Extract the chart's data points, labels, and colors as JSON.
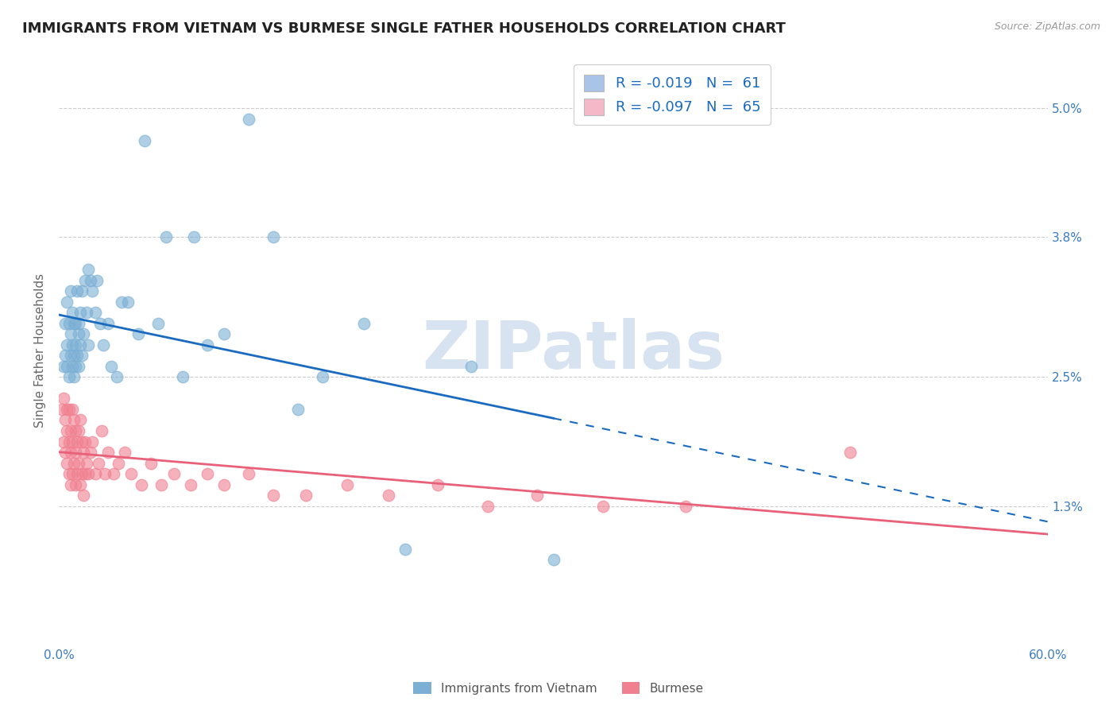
{
  "title": "IMMIGRANTS FROM VIETNAM VS BURMESE SINGLE FATHER HOUSEHOLDS CORRELATION CHART",
  "source": "Source: ZipAtlas.com",
  "ylabel": "Single Father Households",
  "xlim": [
    0.0,
    0.6
  ],
  "ylim": [
    0.0,
    0.055
  ],
  "x_tick_positions": [
    0.0,
    0.1,
    0.2,
    0.3,
    0.4,
    0.5,
    0.6
  ],
  "x_tick_labels": [
    "0.0%",
    "",
    "",
    "",
    "",
    "",
    "60.0%"
  ],
  "y_tick_positions": [
    0.013,
    0.025,
    0.038,
    0.05
  ],
  "y_tick_labels": [
    "1.3%",
    "2.5%",
    "3.8%",
    "5.0%"
  ],
  "legend_label_vietnam": "R = -0.019   N =  61",
  "legend_label_burmese": "R = -0.097   N =  65",
  "legend_patch_vietnam": "#aac4e8",
  "legend_patch_burmese": "#f5b8c8",
  "vietnam_color": "#7bafd4",
  "burmese_color": "#f08090",
  "vietnam_line_color": "#1a6bbf",
  "burmese_line_color": "#e8607a",
  "vietnam_line_solid_end": 0.3,
  "vietnam_scatter_x": [
    0.003,
    0.004,
    0.004,
    0.005,
    0.005,
    0.005,
    0.006,
    0.006,
    0.007,
    0.007,
    0.007,
    0.008,
    0.008,
    0.008,
    0.009,
    0.009,
    0.009,
    0.01,
    0.01,
    0.01,
    0.011,
    0.011,
    0.012,
    0.012,
    0.012,
    0.013,
    0.013,
    0.014,
    0.014,
    0.015,
    0.016,
    0.017,
    0.018,
    0.018,
    0.019,
    0.02,
    0.022,
    0.023,
    0.025,
    0.027,
    0.03,
    0.032,
    0.035,
    0.038,
    0.042,
    0.048,
    0.052,
    0.06,
    0.065,
    0.075,
    0.082,
    0.09,
    0.1,
    0.115,
    0.13,
    0.145,
    0.16,
    0.185,
    0.21,
    0.25,
    0.3
  ],
  "vietnam_scatter_y": [
    0.026,
    0.027,
    0.03,
    0.028,
    0.026,
    0.032,
    0.025,
    0.03,
    0.027,
    0.029,
    0.033,
    0.026,
    0.028,
    0.031,
    0.027,
    0.03,
    0.025,
    0.028,
    0.026,
    0.03,
    0.033,
    0.027,
    0.029,
    0.026,
    0.03,
    0.031,
    0.028,
    0.033,
    0.027,
    0.029,
    0.034,
    0.031,
    0.035,
    0.028,
    0.034,
    0.033,
    0.031,
    0.034,
    0.03,
    0.028,
    0.03,
    0.026,
    0.025,
    0.032,
    0.032,
    0.029,
    0.047,
    0.03,
    0.038,
    0.025,
    0.038,
    0.028,
    0.029,
    0.049,
    0.038,
    0.022,
    0.025,
    0.03,
    0.009,
    0.026,
    0.008
  ],
  "burmese_scatter_x": [
    0.002,
    0.003,
    0.003,
    0.004,
    0.004,
    0.005,
    0.005,
    0.005,
    0.006,
    0.006,
    0.006,
    0.007,
    0.007,
    0.007,
    0.008,
    0.008,
    0.008,
    0.009,
    0.009,
    0.01,
    0.01,
    0.01,
    0.011,
    0.011,
    0.012,
    0.012,
    0.013,
    0.013,
    0.014,
    0.014,
    0.015,
    0.015,
    0.016,
    0.016,
    0.017,
    0.018,
    0.019,
    0.02,
    0.022,
    0.024,
    0.026,
    0.028,
    0.03,
    0.033,
    0.036,
    0.04,
    0.044,
    0.05,
    0.056,
    0.062,
    0.07,
    0.08,
    0.09,
    0.1,
    0.115,
    0.13,
    0.15,
    0.175,
    0.2,
    0.23,
    0.26,
    0.29,
    0.33,
    0.38,
    0.48
  ],
  "burmese_scatter_y": [
    0.022,
    0.023,
    0.019,
    0.021,
    0.018,
    0.022,
    0.02,
    0.017,
    0.019,
    0.022,
    0.016,
    0.02,
    0.018,
    0.015,
    0.022,
    0.019,
    0.016,
    0.021,
    0.017,
    0.02,
    0.018,
    0.015,
    0.019,
    0.016,
    0.02,
    0.017,
    0.021,
    0.015,
    0.019,
    0.016,
    0.018,
    0.014,
    0.019,
    0.016,
    0.017,
    0.016,
    0.018,
    0.019,
    0.016,
    0.017,
    0.02,
    0.016,
    0.018,
    0.016,
    0.017,
    0.018,
    0.016,
    0.015,
    0.017,
    0.015,
    0.016,
    0.015,
    0.016,
    0.015,
    0.016,
    0.014,
    0.014,
    0.015,
    0.014,
    0.015,
    0.013,
    0.014,
    0.013,
    0.013,
    0.018
  ],
  "watermark": "ZIPatlas",
  "watermark_color": "#c8d8ec",
  "background_color": "#ffffff",
  "grid_color": "#cccccc",
  "title_fontsize": 13,
  "axis_label_fontsize": 11,
  "tick_fontsize": 11,
  "tick_color": "#3a7bbf",
  "source_text": "Source: ZipAtlas.com",
  "bottom_legend_vietnam": "Immigrants from Vietnam",
  "bottom_legend_burmese": "Burmese"
}
